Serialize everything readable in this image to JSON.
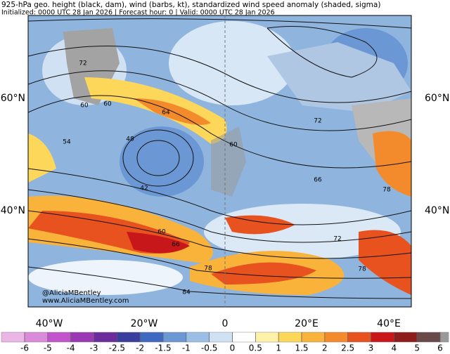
{
  "header": {
    "title": "925-hPa geo. height (black, dam), wind (barbs, kt), standardized wind speed anomaly (shaded, sigma)",
    "subtitle": "Initialized: 0000 UTC 28 Jan 2026 | Forecast hour: 0 | Valid: 0000 UTC 28 Jan 2026"
  },
  "axes": {
    "lat_labels": [
      "60°N",
      "40°N"
    ],
    "lon_labels": [
      "40°W",
      "20°W",
      "0",
      "20°E",
      "40°E"
    ]
  },
  "contour_labels": [
    "72",
    "60",
    "60",
    "54",
    "48",
    "42",
    "64",
    "60",
    "72",
    "66",
    "72",
    "78",
    "78",
    "84",
    "60",
    "66",
    "78"
  ],
  "credit": [
    "@AliciaMBentley",
    "www.AliciaMBentley.com"
  ],
  "colorbar": {
    "ticks": [
      -6,
      -5,
      -4,
      -3,
      -2.5,
      -2,
      -1.5,
      -1,
      -0.5,
      0,
      0.5,
      1,
      1.5,
      2,
      2.5,
      3,
      4,
      5,
      6
    ],
    "colors": [
      "#e9b6e6",
      "#d98ad8",
      "#c254cb",
      "#9b38b3",
      "#6d2c9e",
      "#3a3e9c",
      "#3f68c0",
      "#6b98d4",
      "#9bbfe4",
      "#cfe1f2",
      "#ffffff",
      "#fff2a8",
      "#fcd75a",
      "#f9b23a",
      "#f38a2b",
      "#e8521f",
      "#c8171a",
      "#8e1c1a",
      "#6a4a48",
      "#9a9a9a"
    ]
  }
}
